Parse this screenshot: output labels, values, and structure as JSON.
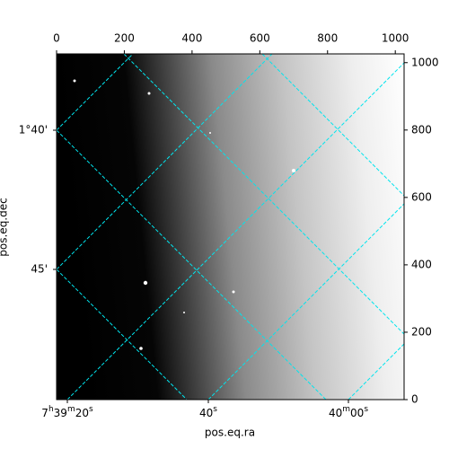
{
  "chart_data": {
    "type": "image",
    "xlabel": "pos.eq.ra",
    "ylabel": "pos.eq.dec",
    "xlim": [
      0,
      1026
    ],
    "ylim": [
      0,
      1026
    ],
    "xticks": [
      0,
      200,
      400,
      600,
      800,
      1000
    ],
    "yticks": [
      0,
      200,
      400,
      600,
      800,
      1000
    ],
    "ra_tick_labels": [
      "7h39m20s",
      "40s",
      "40m00s"
    ],
    "dec_tick_labels": [
      "1°40'",
      "45'"
    ],
    "grid": true,
    "grid_color": "#00e5ee"
  }
}
